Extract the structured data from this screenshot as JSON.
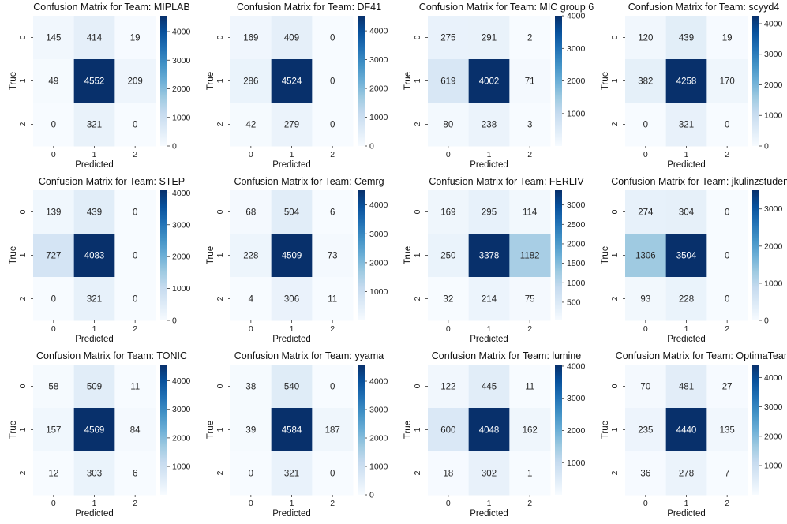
{
  "chart_data": [
    {
      "type": "heatmap",
      "title": "Confusion Matrix for Team: MIPLAB",
      "xlabel": "Predicted",
      "ylabel": "True",
      "x_ticks": [
        "0",
        "1",
        "2"
      ],
      "y_ticks": [
        "0",
        "1",
        "2"
      ],
      "values": [
        [
          145,
          414,
          19
        ],
        [
          49,
          4552,
          209
        ],
        [
          0,
          321,
          0
        ]
      ],
      "colorbar": {
        "min": 0,
        "max": 4552,
        "ticks": [
          0,
          1000,
          2000,
          3000,
          4000
        ]
      }
    },
    {
      "type": "heatmap",
      "title": "Confusion Matrix for Team: DF41",
      "xlabel": "Predicted",
      "ylabel": "True",
      "x_ticks": [
        "0",
        "1",
        "2"
      ],
      "y_ticks": [
        "0",
        "1",
        "2"
      ],
      "values": [
        [
          169,
          409,
          0
        ],
        [
          286,
          4524,
          0
        ],
        [
          42,
          279,
          0
        ]
      ],
      "colorbar": {
        "min": 0,
        "max": 4524,
        "ticks": [
          0,
          1000,
          2000,
          3000,
          4000
        ]
      }
    },
    {
      "type": "heatmap",
      "title": "Confusion Matrix for Team: MIC group 6",
      "xlabel": "Predicted",
      "ylabel": "True",
      "x_ticks": [
        "0",
        "1",
        "2"
      ],
      "y_ticks": [
        "0",
        "1",
        "2"
      ],
      "values": [
        [
          275,
          291,
          2
        ],
        [
          619,
          4002,
          71
        ],
        [
          80,
          238,
          3
        ]
      ],
      "colorbar": {
        "min": 2,
        "max": 4002,
        "ticks": [
          1000,
          2000,
          3000,
          4000
        ]
      }
    },
    {
      "type": "heatmap",
      "title": "Confusion Matrix for Team: scyyd4",
      "xlabel": "Predicted",
      "ylabel": "True",
      "x_ticks": [
        "0",
        "1",
        "2"
      ],
      "y_ticks": [
        "0",
        "1",
        "2"
      ],
      "values": [
        [
          120,
          439,
          19
        ],
        [
          382,
          4258,
          170
        ],
        [
          0,
          321,
          0
        ]
      ],
      "colorbar": {
        "min": 0,
        "max": 4258,
        "ticks": [
          0,
          1000,
          2000,
          3000,
          4000
        ]
      }
    },
    {
      "type": "heatmap",
      "title": "Confusion Matrix for Team: STEP",
      "xlabel": "Predicted",
      "ylabel": "True",
      "x_ticks": [
        "0",
        "1",
        "2"
      ],
      "y_ticks": [
        "0",
        "1",
        "2"
      ],
      "values": [
        [
          139,
          439,
          0
        ],
        [
          727,
          4083,
          0
        ],
        [
          0,
          321,
          0
        ]
      ],
      "colorbar": {
        "min": 0,
        "max": 4083,
        "ticks": [
          0,
          1000,
          2000,
          3000,
          4000
        ]
      }
    },
    {
      "type": "heatmap",
      "title": "Confusion Matrix for Team: Cemrg",
      "xlabel": "Predicted",
      "ylabel": "True",
      "x_ticks": [
        "0",
        "1",
        "2"
      ],
      "y_ticks": [
        "0",
        "1",
        "2"
      ],
      "values": [
        [
          68,
          504,
          6
        ],
        [
          228,
          4509,
          73
        ],
        [
          4,
          306,
          11
        ]
      ],
      "colorbar": {
        "min": 4,
        "max": 4509,
        "ticks": [
          1000,
          2000,
          3000,
          4000
        ]
      }
    },
    {
      "type": "heatmap",
      "title": "Confusion Matrix for Team: FERLIV",
      "xlabel": "Predicted",
      "ylabel": "True",
      "x_ticks": [
        "0",
        "1",
        "2"
      ],
      "y_ticks": [
        "0",
        "1",
        "2"
      ],
      "values": [
        [
          169,
          295,
          114
        ],
        [
          250,
          3378,
          1182
        ],
        [
          32,
          214,
          75
        ]
      ],
      "colorbar": {
        "min": 32,
        "max": 3378,
        "ticks": [
          500,
          1000,
          1500,
          2000,
          2500,
          3000
        ]
      }
    },
    {
      "type": "heatmap",
      "title": "Confusion Matrix for Team: jkulinzstudents",
      "xlabel": "Predicted",
      "ylabel": "True",
      "x_ticks": [
        "0",
        "1",
        "2"
      ],
      "y_ticks": [
        "0",
        "1",
        "2"
      ],
      "values": [
        [
          274,
          304,
          0
        ],
        [
          1306,
          3504,
          0
        ],
        [
          93,
          228,
          0
        ]
      ],
      "colorbar": {
        "min": 0,
        "max": 3504,
        "ticks": [
          0,
          1000,
          2000,
          3000
        ]
      }
    },
    {
      "type": "heatmap",
      "title": "Confusion Matrix for Team: TONIC",
      "xlabel": "Predicted",
      "ylabel": "True",
      "x_ticks": [
        "0",
        "1",
        "2"
      ],
      "y_ticks": [
        "0",
        "1",
        "2"
      ],
      "values": [
        [
          58,
          509,
          11
        ],
        [
          157,
          4569,
          84
        ],
        [
          12,
          303,
          6
        ]
      ],
      "colorbar": {
        "min": 6,
        "max": 4569,
        "ticks": [
          1000,
          2000,
          3000,
          4000
        ]
      }
    },
    {
      "type": "heatmap",
      "title": "Confusion Matrix for Team: yyama",
      "xlabel": "Predicted",
      "ylabel": "True",
      "x_ticks": [
        "0",
        "1",
        "2"
      ],
      "y_ticks": [
        "0",
        "1",
        "2"
      ],
      "values": [
        [
          38,
          540,
          0
        ],
        [
          39,
          4584,
          187
        ],
        [
          0,
          321,
          0
        ]
      ],
      "colorbar": {
        "min": 0,
        "max": 4584,
        "ticks": [
          0,
          1000,
          2000,
          3000,
          4000
        ]
      }
    },
    {
      "type": "heatmap",
      "title": "Confusion Matrix for Team: lumine",
      "xlabel": "Predicted",
      "ylabel": "True",
      "x_ticks": [
        "0",
        "1",
        "2"
      ],
      "y_ticks": [
        "0",
        "1",
        "2"
      ],
      "values": [
        [
          122,
          445,
          11
        ],
        [
          600,
          4048,
          162
        ],
        [
          18,
          302,
          1
        ]
      ],
      "colorbar": {
        "min": 1,
        "max": 4048,
        "ticks": [
          1000,
          2000,
          3000,
          4000
        ]
      }
    },
    {
      "type": "heatmap",
      "title": "Confusion Matrix for Team: OptimaTeam",
      "xlabel": "Predicted",
      "ylabel": "True",
      "x_ticks": [
        "0",
        "1",
        "2"
      ],
      "y_ticks": [
        "0",
        "1",
        "2"
      ],
      "values": [
        [
          70,
          481,
          27
        ],
        [
          235,
          4440,
          135
        ],
        [
          36,
          278,
          7
        ]
      ],
      "colorbar": {
        "min": 7,
        "max": 4440,
        "ticks": [
          1000,
          2000,
          3000,
          4000
        ]
      }
    }
  ],
  "colors": {
    "scale": [
      "#f7fbff",
      "#deebf7",
      "#c6dbef",
      "#9ecae1",
      "#6baed6",
      "#4292c6",
      "#2171b5",
      "#08519c",
      "#08306b"
    ],
    "text_dark": "#262626",
    "text_light": "#ffffff"
  }
}
